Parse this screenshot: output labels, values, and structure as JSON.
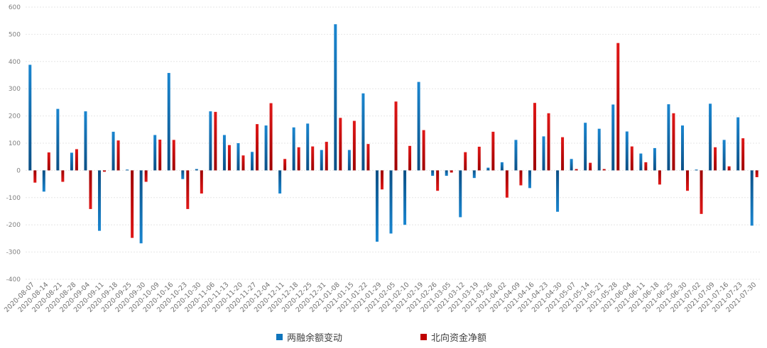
{
  "chart_data": {
    "type": "bar",
    "title": "",
    "xlabel": "",
    "ylabel": "",
    "ylim": [
      -400,
      600
    ],
    "yticks": [
      -400,
      -300,
      -200,
      -100,
      0,
      100,
      200,
      300,
      400,
      500,
      600
    ],
    "grid": true,
    "legend_position": "bottom",
    "categories": [
      "2020-08-07",
      "2020-08-14",
      "2020-08-21",
      "2020-08-28",
      "2020-09-04",
      "2020-09-11",
      "2020-09-18",
      "2020-09-25",
      "2020-09-30",
      "2020-10-09",
      "2020-10-16",
      "2020-10-23",
      "2020-10-30",
      "2020-11-06",
      "2020-11-13",
      "2020-11-20",
      "2020-11-27",
      "2020-12-04",
      "2020-12-11",
      "2020-12-18",
      "2020-12-25",
      "2020-12-31",
      "2021-01-08",
      "2021-01-15",
      "2021-01-22",
      "2021-01-29",
      "2021-02-05",
      "2021-02-10",
      "2021-02-19",
      "2021-02-26",
      "2021-03-05",
      "2021-03-12",
      "2021-03-19",
      "2021-03-26",
      "2021-04-02",
      "2021-04-09",
      "2021-04-16",
      "2021-04-23",
      "2021-04-30",
      "2021-05-07",
      "2021-05-14",
      "2021-05-21",
      "2021-05-28",
      "2021-06-04",
      "2021-06-11",
      "2021-06-18",
      "2021-06-25",
      "2021-06-30",
      "2021-07-02",
      "2021-07-09",
      "2021-07-16",
      "2021-07-23",
      "2021-07-30"
    ],
    "series": [
      {
        "name": "两融余额变动",
        "color": "#0f75bc",
        "values": [
          388,
          -78,
          226,
          65,
          217,
          -222,
          142,
          3,
          -268,
          130,
          358,
          -32,
          5,
          217,
          130,
          100,
          68,
          165,
          -85,
          158,
          172,
          75,
          537,
          75,
          283,
          -262,
          -232,
          -200,
          325,
          -20,
          -20,
          -172,
          -28,
          10,
          30,
          112,
          -65,
          125,
          -152,
          42,
          175,
          153,
          242,
          143,
          62,
          82,
          243,
          165,
          3,
          245,
          112,
          195,
          -203
        ]
      },
      {
        "name": "北向资金净额",
        "color": "#c00000",
        "values": [
          -45,
          66,
          -42,
          78,
          -142,
          -5,
          110,
          -248,
          -42,
          113,
          112,
          -142,
          -85,
          215,
          93,
          55,
          170,
          247,
          42,
          85,
          88,
          105,
          193,
          182,
          97,
          -70,
          253,
          90,
          148,
          -75,
          -8,
          67,
          87,
          142,
          -100,
          -55,
          248,
          210,
          122,
          5,
          28,
          5,
          468,
          88,
          30,
          -52,
          210,
          -75,
          -160,
          85,
          15,
          118,
          -25
        ]
      }
    ]
  }
}
